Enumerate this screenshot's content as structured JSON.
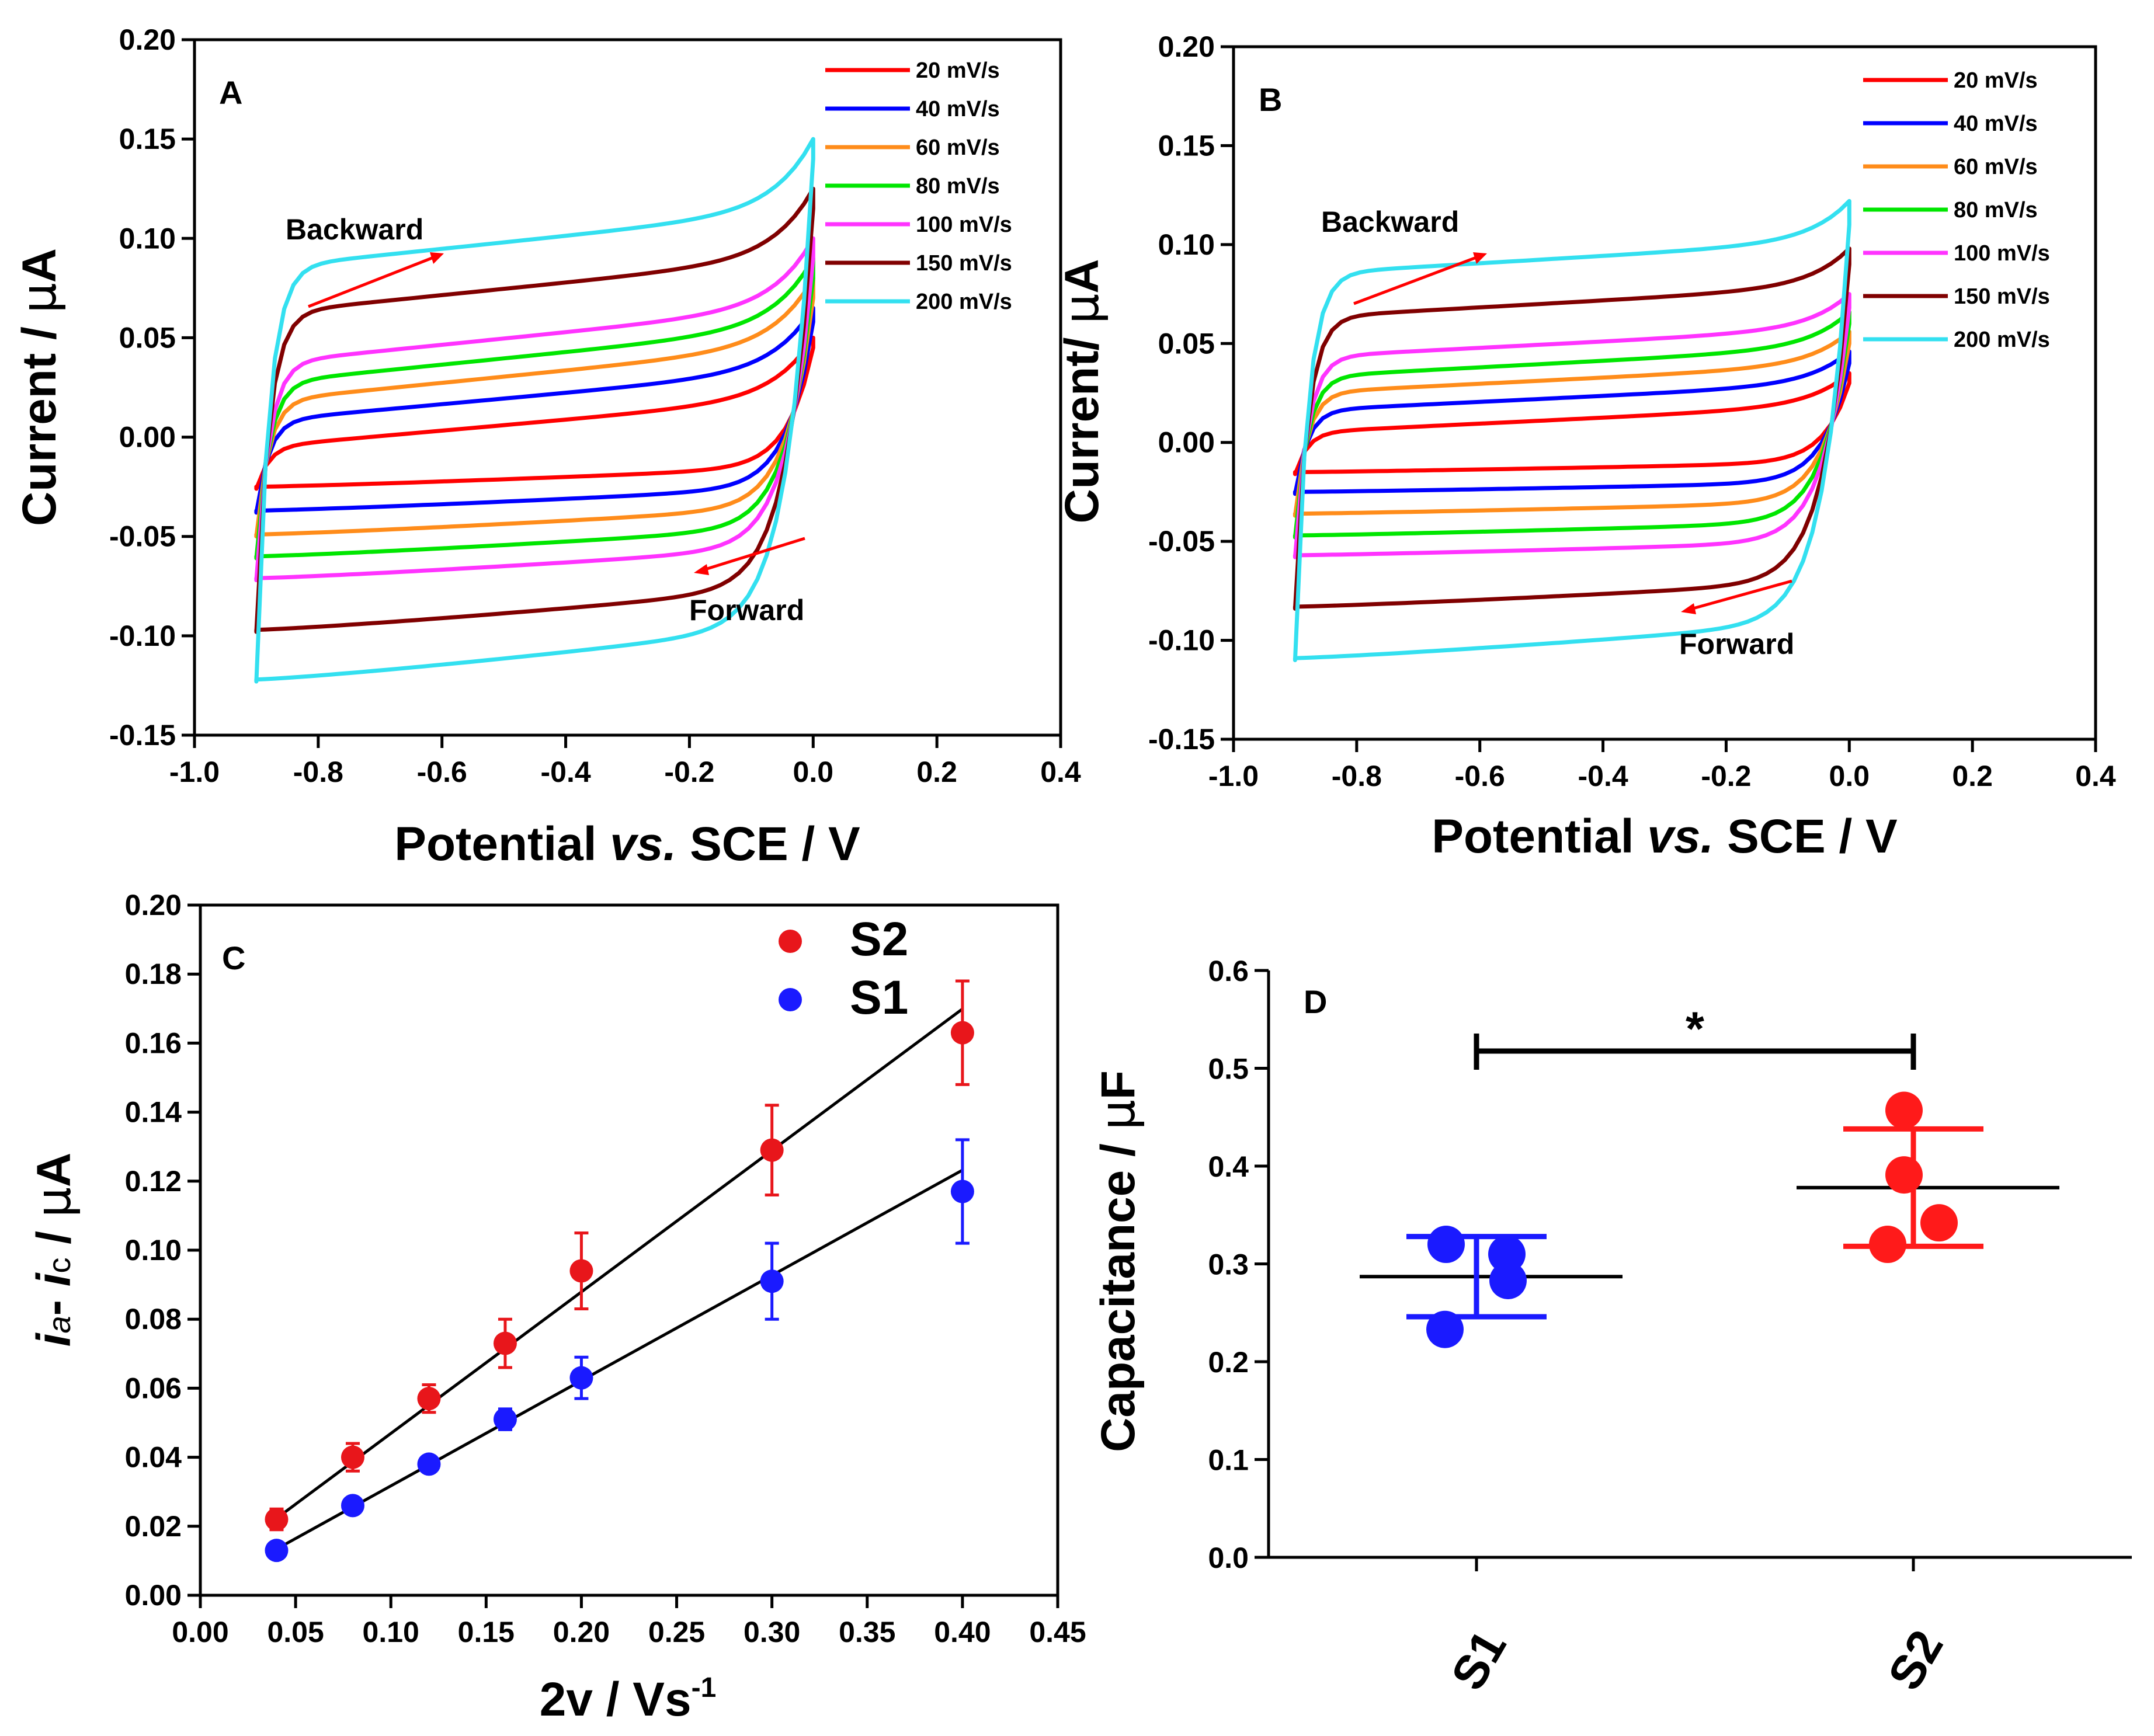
{
  "chart_data": [
    {
      "type": "line",
      "panel_label": "A",
      "xlabel_parts": [
        "Potential ",
        "vs.",
        " SCE / V"
      ],
      "ylabel_parts": [
        "Current / ",
        "μ",
        "A"
      ],
      "xlim": [
        -1.0,
        0.4
      ],
      "ylim": [
        -0.15,
        0.2
      ],
      "xticks": [
        "-1.0",
        "-0.8",
        "-0.6",
        "-0.4",
        "-0.2",
        "0.0",
        "0.2",
        "0.4"
      ],
      "yticks": [
        "-0.15",
        "-0.10",
        "-0.05",
        "0.00",
        "0.05",
        "0.10",
        "0.15",
        "0.20"
      ],
      "annotations": {
        "backward": "Backward",
        "forward": "Forward"
      },
      "series": [
        {
          "name": "20 mV/s",
          "color": "#ff0000",
          "upper_start": -0.026,
          "upper_mid": -0.005,
          "upper_end": 0.05,
          "lower_start": -0.025,
          "lower_mid": -0.015,
          "lower_end": 0.045
        },
        {
          "name": "40 mV/s",
          "color": "#0000ff",
          "upper_start": -0.038,
          "upper_mid": 0.008,
          "upper_end": 0.065,
          "lower_start": -0.037,
          "lower_mid": -0.025,
          "lower_end": 0.058
        },
        {
          "name": "60 mV/s",
          "color": "#ff8c1a",
          "upper_start": -0.05,
          "upper_mid": 0.018,
          "upper_end": 0.08,
          "lower_start": -0.049,
          "lower_mid": -0.035,
          "lower_end": 0.07
        },
        {
          "name": "80 mV/s",
          "color": "#00e600",
          "upper_start": -0.061,
          "upper_mid": 0.027,
          "upper_end": 0.09,
          "lower_start": -0.06,
          "lower_mid": -0.045,
          "lower_end": 0.08
        },
        {
          "name": "100 mV/s",
          "color": "#ff33ff",
          "upper_start": -0.072,
          "upper_mid": 0.037,
          "upper_end": 0.1,
          "lower_start": -0.071,
          "lower_mid": -0.055,
          "lower_end": 0.09
        },
        {
          "name": "150 mV/s",
          "color": "#800000",
          "upper_start": -0.098,
          "upper_mid": 0.062,
          "upper_end": 0.125,
          "lower_start": -0.097,
          "lower_mid": -0.075,
          "lower_end": 0.115
        },
        {
          "name": "200 mV/s",
          "color": "#33e0f0",
          "upper_start": -0.123,
          "upper_mid": 0.085,
          "upper_end": 0.15,
          "lower_start": -0.122,
          "lower_mid": -0.094,
          "lower_end": 0.14
        }
      ]
    },
    {
      "type": "line",
      "panel_label": "B",
      "xlabel_parts": [
        "Potential ",
        "vs.",
        " SCE / V"
      ],
      "ylabel_parts": [
        "Current/ ",
        "μ",
        "A"
      ],
      "xlim": [
        -1.0,
        0.4
      ],
      "ylim": [
        -0.15,
        0.2
      ],
      "xticks": [
        "-1.0",
        "-0.8",
        "-0.6",
        "-0.4",
        "-0.2",
        "0.0",
        "0.2",
        "0.4"
      ],
      "yticks": [
        "-0.15",
        "-0.10",
        "-0.05",
        "0.00",
        "0.05",
        "0.10",
        "0.15",
        "0.20"
      ],
      "annotations": {
        "backward": "Backward",
        "forward": "Forward"
      },
      "series": [
        {
          "name": "20 mV/s",
          "color": "#ff0000",
          "upper_start": -0.016,
          "upper_mid": 0.005,
          "upper_end": 0.035,
          "lower_start": -0.015,
          "lower_mid": -0.01,
          "lower_end": 0.03
        },
        {
          "name": "40 mV/s",
          "color": "#0000ff",
          "upper_start": -0.026,
          "upper_mid": 0.016,
          "upper_end": 0.046,
          "lower_start": -0.025,
          "lower_mid": -0.02,
          "lower_end": 0.04
        },
        {
          "name": "60 mV/s",
          "color": "#ff8c1a",
          "upper_start": -0.037,
          "upper_mid": 0.025,
          "upper_end": 0.056,
          "lower_start": -0.036,
          "lower_mid": -0.03,
          "lower_end": 0.05
        },
        {
          "name": "80 mV/s",
          "color": "#00e600",
          "upper_start": -0.048,
          "upper_mid": 0.033,
          "upper_end": 0.066,
          "lower_start": -0.047,
          "lower_mid": -0.04,
          "lower_end": 0.06
        },
        {
          "name": "100 mV/s",
          "color": "#ff33ff",
          "upper_start": -0.058,
          "upper_mid": 0.043,
          "upper_end": 0.075,
          "lower_start": -0.057,
          "lower_mid": -0.05,
          "lower_end": 0.068
        },
        {
          "name": "150 mV/s",
          "color": "#800000",
          "upper_start": -0.084,
          "upper_mid": 0.063,
          "upper_end": 0.098,
          "lower_start": -0.083,
          "lower_mid": -0.07,
          "lower_end": 0.09
        },
        {
          "name": "200 mV/s",
          "color": "#33e0f0",
          "upper_start": -0.11,
          "upper_mid": 0.085,
          "upper_end": 0.122,
          "lower_start": -0.109,
          "lower_mid": -0.09,
          "lower_end": 0.11
        }
      ]
    },
    {
      "type": "scatter",
      "panel_label": "C",
      "xlabel": "2v / Vs",
      "xlabel_sup": "-1",
      "ylabel_parts": [
        "i",
        "a",
        "- ",
        "i",
        "c",
        " / ",
        "μ",
        "A"
      ],
      "xlim": [
        0.0,
        0.45
      ],
      "ylim": [
        0.0,
        0.2
      ],
      "xticks": [
        "0.00",
        "0.05",
        "0.10",
        "0.15",
        "0.20",
        "0.25",
        "0.30",
        "0.35",
        "0.40",
        "0.45"
      ],
      "yticks": [
        "0.00",
        "0.02",
        "0.04",
        "0.06",
        "0.08",
        "0.10",
        "0.12",
        "0.14",
        "0.16",
        "0.18",
        "0.20"
      ],
      "x": [
        0.04,
        0.08,
        0.12,
        0.16,
        0.2,
        0.3,
        0.4
      ],
      "series": [
        {
          "name": "S2",
          "color": "#e8161b",
          "values": [
            0.022,
            0.04,
            0.057,
            0.073,
            0.094,
            0.129,
            0.163
          ],
          "errors": [
            0.003,
            0.004,
            0.004,
            0.007,
            0.011,
            0.013,
            0.015
          ],
          "fit": [
            0.0059,
            0.41
          ]
        },
        {
          "name": "S1",
          "color": "#1a1aff",
          "values": [
            0.013,
            0.026,
            0.038,
            0.051,
            0.063,
            0.091,
            0.117
          ],
          "errors": [
            0.002,
            0.002,
            0.002,
            0.003,
            0.006,
            0.011,
            0.015
          ],
          "fit": [
            0.0012,
            0.305
          ]
        }
      ]
    },
    {
      "type": "scatter",
      "panel_label": "D",
      "ylabel_parts": [
        "Capacitance / ",
        "μ",
        "F"
      ],
      "categories": [
        "S1",
        "S2"
      ],
      "ylim": [
        0.0,
        0.6
      ],
      "yticks": [
        "0.0",
        "0.1",
        "0.2",
        "0.3",
        "0.4",
        "0.5",
        "0.6"
      ],
      "significance": "*",
      "groups": [
        {
          "name": "S1",
          "color": "#1a1aff",
          "points": [
            0.32,
            0.233,
            0.31,
            0.283
          ],
          "mean": 0.287,
          "sd": 0.041
        },
        {
          "name": "S2",
          "color": "#ff1a1a",
          "points": [
            0.457,
            0.391,
            0.342,
            0.32
          ],
          "mean": 0.378,
          "sd": 0.06
        }
      ]
    }
  ]
}
